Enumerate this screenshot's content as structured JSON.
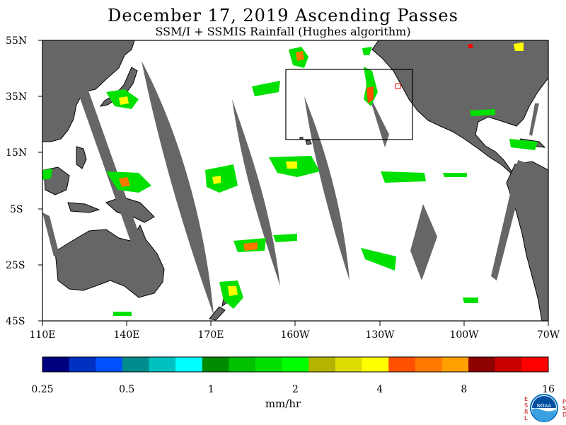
{
  "title": "December 17, 2019  Ascending Passes",
  "subtitle": "SSM/I + SSMIS Rainfall (Hughes algorithm)",
  "map": {
    "lat_labels": [
      "55N",
      "35N",
      "15N",
      "5S",
      "25S",
      "45S"
    ],
    "lon_labels": [
      "110E",
      "140E",
      "170E",
      "160W",
      "130W",
      "100W",
      "70W"
    ],
    "land_color": "#666666",
    "gap_color": "#666666",
    "ocean_color": "#ffffff"
  },
  "colorbar": {
    "colors": [
      "#00007f",
      "#0030c0",
      "#0050ff",
      "#008c8c",
      "#00c0c0",
      "#00ffff",
      "#008c00",
      "#00c000",
      "#00e000",
      "#00ff00",
      "#b4b400",
      "#dcdc00",
      "#ffff00",
      "#ff5000",
      "#ff7800",
      "#ffa000",
      "#8c0000",
      "#c80000",
      "#ff0000"
    ],
    "labels": [
      "0.25",
      "0.5",
      "1",
      "2",
      "4",
      "8",
      "16"
    ],
    "unit": "mm/hr"
  },
  "logo": {
    "left_text": "ESRL",
    "right_text": "PSD",
    "center_text": "NOAA"
  }
}
